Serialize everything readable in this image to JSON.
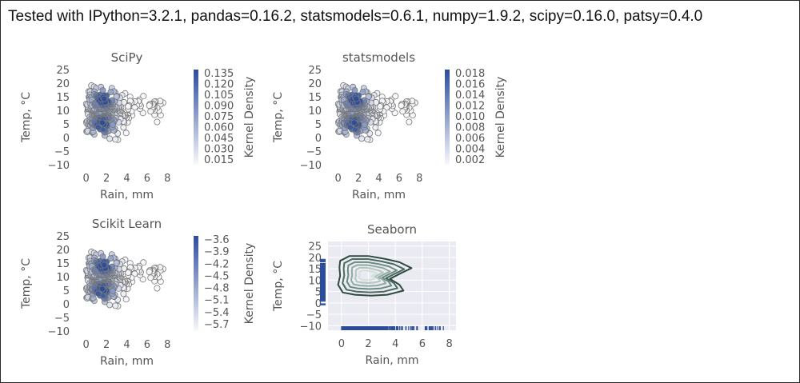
{
  "banner": "Tested with IPython=3.2.1, pandas=0.16.2, statsmodels=0.6.1, numpy=1.9.2, scipy=0.16.0, patsy=0.4.0",
  "colors": {
    "dark_blue": "#2b4c9b",
    "edge": "#777777",
    "panel_bg": "#eaeaf2",
    "grid": "#ffffff",
    "contour": "#3c5a50"
  },
  "chart_data": [
    {
      "type": "scatter",
      "title": "SciPy",
      "xlabel": "Rain, mm",
      "ylabel": "Temp, °C",
      "xlim": [
        -1,
        9
      ],
      "ylim": [
        -10,
        25
      ],
      "xticks": [
        "0",
        "2",
        "4",
        "6",
        "8"
      ],
      "yticks": [
        "25",
        "20",
        "15",
        "10",
        "5",
        "0",
        "−5",
        "−10"
      ],
      "colorbar": {
        "label": "Kernel Density",
        "ticks": [
          "0.135",
          "0.120",
          "0.105",
          "0.090",
          "0.075",
          "0.060",
          "0.045",
          "0.030",
          "0.015"
        ]
      }
    },
    {
      "type": "scatter",
      "title": "statsmodels",
      "xlabel": "Rain, mm",
      "ylabel": "Temp, °C",
      "xlim": [
        -1,
        9
      ],
      "ylim": [
        -10,
        25
      ],
      "xticks": [
        "0",
        "2",
        "4",
        "6",
        "8"
      ],
      "yticks": [
        "25",
        "20",
        "15",
        "10",
        "5",
        "0",
        "−5",
        "−10"
      ],
      "colorbar": {
        "label": "Kernel Density",
        "ticks": [
          "0.018",
          "0.016",
          "0.014",
          "0.012",
          "0.010",
          "0.008",
          "0.006",
          "0.004",
          "0.002"
        ]
      }
    },
    {
      "type": "scatter",
      "title": "Scikit Learn",
      "xlabel": "Rain, mm",
      "ylabel": "Temp, °C",
      "xlim": [
        -1,
        9
      ],
      "ylim": [
        -10,
        25
      ],
      "xticks": [
        "0",
        "2",
        "4",
        "6",
        "8"
      ],
      "yticks": [
        "25",
        "20",
        "15",
        "10",
        "5",
        "0",
        "−5",
        "−10"
      ],
      "colorbar": {
        "label": "Kernel Density",
        "ticks": [
          "−3.6",
          "−3.9",
          "−4.2",
          "−4.5",
          "−4.8",
          "−5.1",
          "−5.4",
          "−5.7"
        ]
      }
    },
    {
      "type": "contour",
      "title": "Seaborn",
      "xlabel": "Rain, mm",
      "ylabel": "Temp, °C",
      "xlim": [
        -1,
        8.5
      ],
      "ylim": [
        -12,
        27
      ],
      "xticks": [
        "0",
        "2",
        "4",
        "6",
        "8"
      ],
      "yticks": [
        "25",
        "20",
        "15",
        "10",
        "5",
        "0",
        "−5",
        "−10"
      ],
      "grid": true
    }
  ]
}
